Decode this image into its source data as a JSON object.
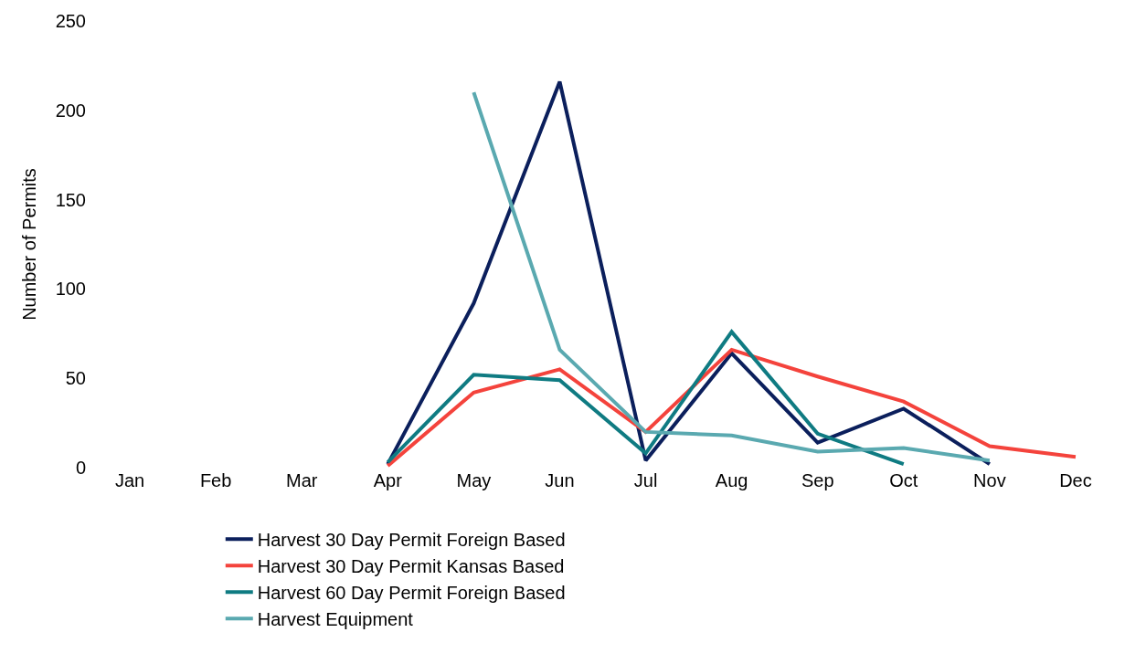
{
  "chart_data": {
    "type": "line",
    "ylabel": "Number of Permits",
    "categories": [
      "Jan",
      "Feb",
      "Mar",
      "Apr",
      "May",
      "Jun",
      "Jul",
      "Aug",
      "Sep",
      "Oct",
      "Nov",
      "Dec"
    ],
    "series": [
      {
        "name": "Harvest 30 Day Permit Foreign Based",
        "color": "#0b1f5c",
        "values": [
          null,
          null,
          null,
          2,
          92,
          216,
          4,
          64,
          14,
          33,
          2,
          null
        ]
      },
      {
        "name": "Harvest 30 Day Permit Kansas Based",
        "color": "#f4433c",
        "values": [
          null,
          null,
          null,
          1,
          42,
          55,
          20,
          66,
          51,
          37,
          12,
          6
        ]
      },
      {
        "name": "Harvest 60 Day Permit Foreign Based",
        "color": "#0f7b82",
        "values": [
          null,
          null,
          null,
          3,
          52,
          49,
          8,
          76,
          19,
          2,
          null,
          null
        ]
      },
      {
        "name": "Harvest Equipment",
        "color": "#5aa9b0",
        "values": [
          null,
          null,
          null,
          null,
          210,
          66,
          20,
          18,
          9,
          11,
          4,
          null
        ]
      }
    ],
    "ylim": [
      0,
      250
    ],
    "yticks": [
      0,
      50,
      100,
      150,
      200,
      250
    ],
    "legend": "bottom",
    "marker": "none",
    "line_style": "solid"
  }
}
